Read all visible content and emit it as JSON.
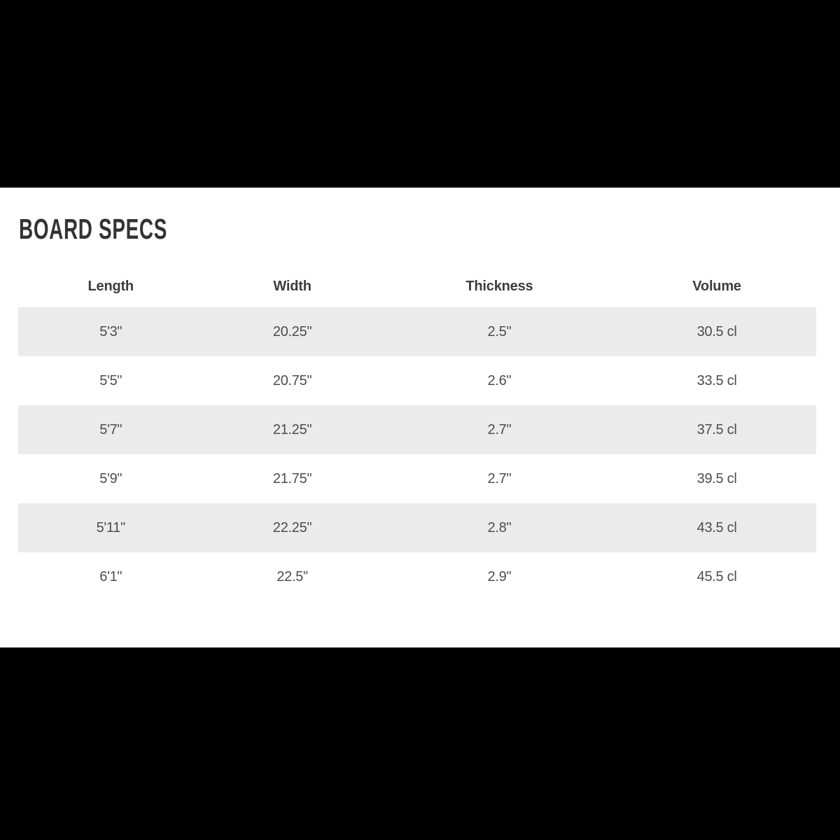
{
  "page": {
    "background_color": "#000000",
    "content_background_color": "#ffffff",
    "stripe_color": "#ebebeb",
    "title_color": "#333333",
    "text_color": "#4d4d4d"
  },
  "section": {
    "title": "BOARD SPECS"
  },
  "table": {
    "headers": [
      "Length",
      "Width",
      "Thickness",
      "Volume"
    ],
    "rows": [
      [
        "5'3\"",
        "20.25\"",
        "2.5\"",
        "30.5 cl"
      ],
      [
        "5'5\"",
        "20.75\"",
        "2.6\"",
        "33.5 cl"
      ],
      [
        "5'7\"",
        "21.25\"",
        "2.7\"",
        "37.5 cl"
      ],
      [
        "5'9\"",
        "21.75\"",
        "2.7\"",
        "39.5 cl"
      ],
      [
        "5'11\"",
        "22.25\"",
        "2.8\"",
        "43.5 cl"
      ],
      [
        "6'1\"",
        "22.5\"",
        "2.9\"",
        "45.5 cl"
      ]
    ]
  },
  "chart_data": {
    "type": "table",
    "title": "BOARD SPECS",
    "columns": [
      "Length",
      "Width",
      "Thickness",
      "Volume"
    ],
    "rows": [
      [
        "5'3\"",
        "20.25\"",
        "2.5\"",
        "30.5 cl"
      ],
      [
        "5'5\"",
        "20.75\"",
        "2.6\"",
        "33.5 cl"
      ],
      [
        "5'7\"",
        "21.25\"",
        "2.7\"",
        "37.5 cl"
      ],
      [
        "5'9\"",
        "21.75\"",
        "2.7\"",
        "39.5 cl"
      ],
      [
        "5'11\"",
        "22.25\"",
        "2.8\"",
        "43.5 cl"
      ],
      [
        "6'1\"",
        "22.5\"",
        "2.9\"",
        "45.5 cl"
      ]
    ]
  }
}
